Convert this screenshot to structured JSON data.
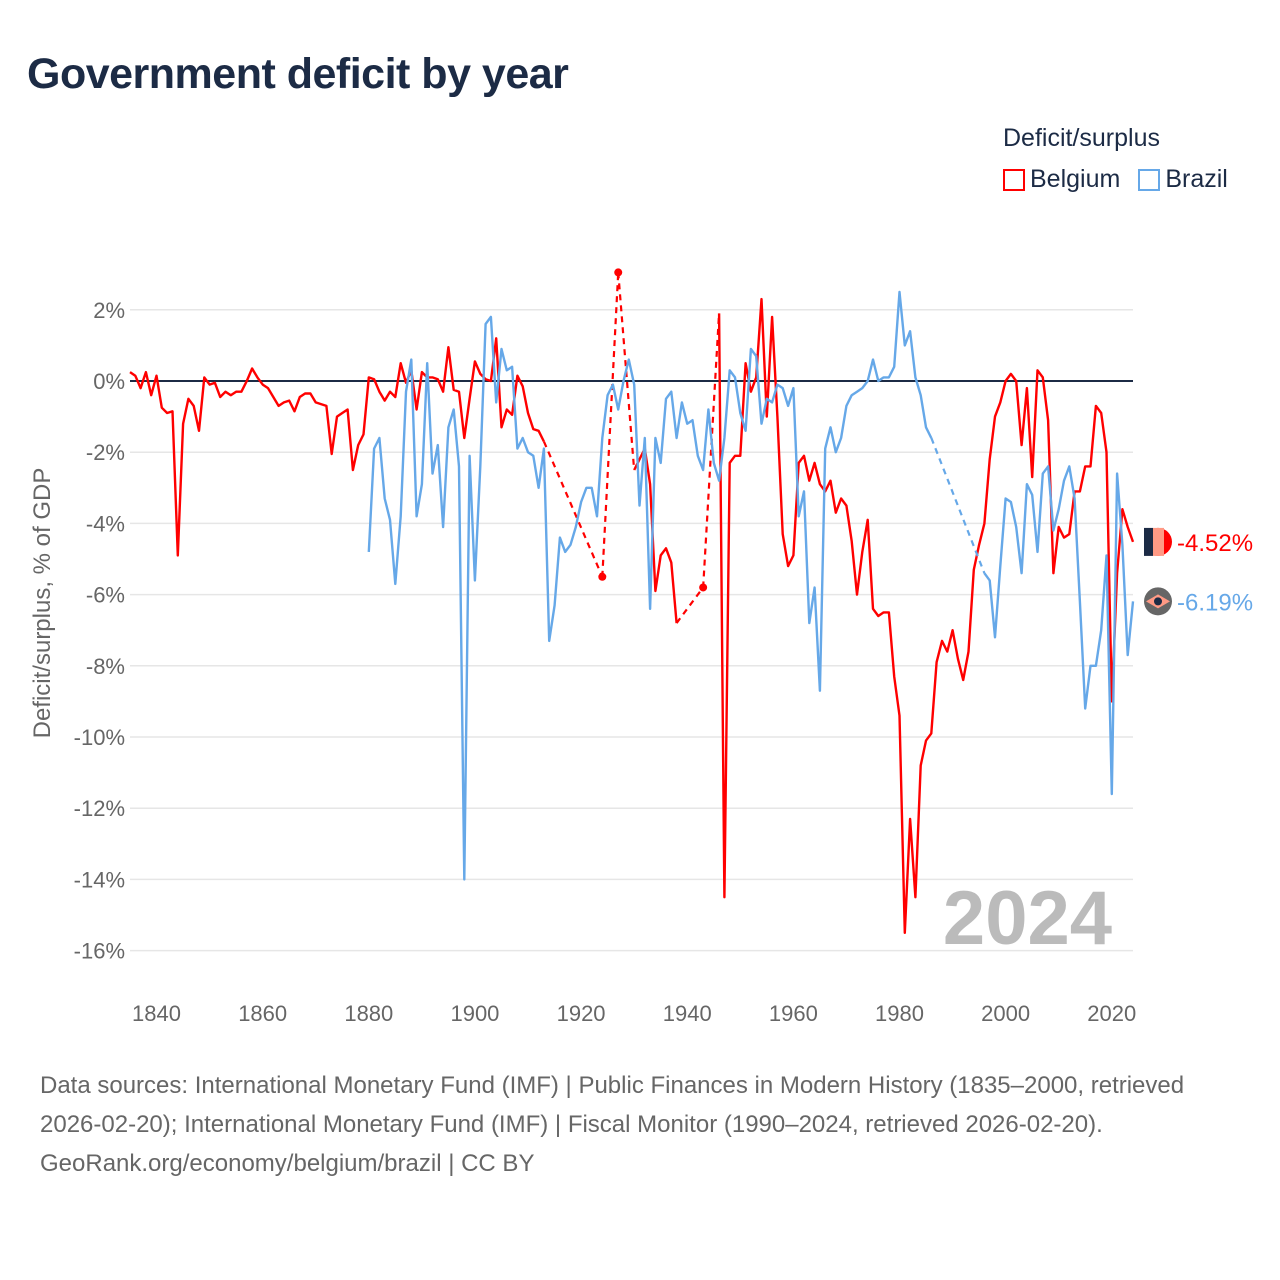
{
  "title": "Government deficit by year",
  "legend": {
    "title": "Deficit/surplus",
    "items": [
      {
        "name": "Belgium",
        "color": "#ff0000"
      },
      {
        "name": "Brazil",
        "color": "#66a8e8"
      }
    ]
  },
  "footer": {
    "sources": "Data sources: International Monetary Fund (IMF) | Public Finances in Modern History (1835–2000, retrieved 2026-02-20); International Monetary Fund (IMF) | Fiscal Monitor (1990–2024, retrieved 2026-02-20).",
    "credit": "GeoRank.org/economy/belgium/brazil | CC BY"
  },
  "chart_data": {
    "type": "line",
    "title": "Government deficit by year",
    "xlabel": "",
    "ylabel": "Deficit/surplus, % of GDP",
    "xlim": [
      1835,
      2024
    ],
    "ylim": [
      -17,
      3.3
    ],
    "x_ticks": [
      1840,
      1860,
      1880,
      1900,
      1920,
      1940,
      1960,
      1980,
      2000,
      2020
    ],
    "y_ticks": [
      2,
      0,
      -2,
      -4,
      -6,
      -8,
      -10,
      -12,
      -14,
      -16
    ],
    "y_tick_labels": [
      "2%",
      "0%",
      "-2%",
      "-4%",
      "-6%",
      "-8%",
      "-10%",
      "-12%",
      "-14%",
      "-16%"
    ],
    "current_year_label": "2024",
    "grid": true,
    "legend_position": "top-right",
    "series": [
      {
        "name": "Belgium",
        "color": "#ff0000",
        "end_label": "-4.52%",
        "years": [
          1835,
          1836,
          1837,
          1838,
          1839,
          1840,
          1841,
          1842,
          1843,
          1844,
          1845,
          1846,
          1847,
          1848,
          1849,
          1850,
          1851,
          1852,
          1853,
          1854,
          1855,
          1856,
          1857,
          1858,
          1859,
          1860,
          1861,
          1862,
          1863,
          1864,
          1865,
          1866,
          1867,
          1868,
          1869,
          1870,
          1871,
          1872,
          1873,
          1874,
          1875,
          1876,
          1877,
          1878,
          1879,
          1880,
          1881,
          1882,
          1883,
          1884,
          1885,
          1886,
          1887,
          1888,
          1889,
          1890,
          1891,
          1892,
          1893,
          1894,
          1895,
          1896,
          1897,
          1898,
          1899,
          1900,
          1901,
          1902,
          1903,
          1904,
          1905,
          1906,
          1907,
          1908,
          1909,
          1910,
          1911,
          1912,
          1913,
          1924,
          1927,
          1930,
          1931,
          1932,
          1933,
          1934,
          1935,
          1936,
          1937,
          1938,
          1943,
          1946,
          1947,
          1948,
          1949,
          1950,
          1951,
          1952,
          1953,
          1954,
          1955,
          1956,
          1957,
          1958,
          1959,
          1960,
          1961,
          1962,
          1963,
          1964,
          1965,
          1966,
          1967,
          1968,
          1969,
          1970,
          1971,
          1972,
          1973,
          1974,
          1975,
          1976,
          1977,
          1978,
          1979,
          1980,
          1981,
          1982,
          1983,
          1984,
          1985,
          1986,
          1987,
          1988,
          1989,
          1990,
          1991,
          1992,
          1993,
          1994,
          1995,
          1996,
          1997,
          1998,
          1999,
          2000,
          2001,
          2002,
          2003,
          2004,
          2005,
          2006,
          2007,
          2008,
          2009,
          2010,
          2011,
          2012,
          2013,
          2014,
          2015,
          2016,
          2017,
          2018,
          2019,
          2020,
          2021,
          2022,
          2023,
          2024
        ],
        "values": [
          0.25,
          0.15,
          -0.2,
          0.25,
          -0.4,
          0.15,
          -0.75,
          -0.9,
          -0.85,
          -4.9,
          -1.2,
          -0.5,
          -0.7,
          -1.4,
          0.1,
          -0.1,
          -0.05,
          -0.45,
          -0.3,
          -0.4,
          -0.3,
          -0.3,
          0.0,
          0.35,
          0.1,
          -0.1,
          -0.2,
          -0.45,
          -0.7,
          -0.6,
          -0.55,
          -0.85,
          -0.45,
          -0.35,
          -0.35,
          -0.6,
          -0.65,
          -0.7,
          -2.05,
          -1.0,
          -0.9,
          -0.8,
          -2.5,
          -1.8,
          -1.5,
          0.1,
          0.05,
          -0.3,
          -0.55,
          -0.3,
          -0.45,
          0.5,
          -0.05,
          0.3,
          -0.8,
          0.25,
          0.1,
          0.1,
          0.05,
          -0.3,
          0.95,
          -0.25,
          -0.3,
          -1.6,
          -0.5,
          0.55,
          0.2,
          0.05,
          0.0,
          1.2,
          -1.3,
          -0.8,
          -0.95,
          0.15,
          -0.15,
          -0.9,
          -1.35,
          -1.4,
          -1.7,
          -5.5,
          3.05,
          -2.5,
          -2.2,
          -1.9,
          -2.9,
          -5.9,
          -4.9,
          -4.7,
          -5.1,
          -6.8,
          -5.8,
          1.9,
          -14.5,
          -2.3,
          -2.1,
          -2.1,
          0.5,
          -0.3,
          0.1,
          2.3,
          -1.0,
          1.8,
          -1.0,
          -4.3,
          -5.2,
          -4.9,
          -2.3,
          -2.1,
          -2.8,
          -2.3,
          -2.9,
          -3.1,
          -2.8,
          -3.7,
          -3.3,
          -3.5,
          -4.5,
          -6.0,
          -4.8,
          -3.9,
          -6.4,
          -6.6,
          -6.5,
          -6.5,
          -8.3,
          -9.4,
          -15.5,
          -12.3,
          -14.5,
          -10.8,
          -10.1,
          -9.9,
          -7.9,
          -7.3,
          -7.6,
          -7.0,
          -7.8,
          -8.4,
          -7.6,
          -5.3,
          -4.6,
          -4.0,
          -2.2,
          -1.0,
          -0.6,
          0.0,
          0.2,
          0.0,
          -1.8,
          -0.2,
          -2.7,
          0.3,
          0.1,
          -1.1,
          -5.4,
          -4.1,
          -4.4,
          -4.3,
          -3.1,
          -3.1,
          -2.4,
          -2.4,
          -0.7,
          -0.9,
          -2.0,
          -9.0,
          -5.4,
          -3.6,
          -4.1,
          -4.52
        ]
      },
      {
        "name": "Brazil",
        "color": "#66a8e8",
        "end_label": "-6.19%",
        "years": [
          1880,
          1881,
          1882,
          1883,
          1884,
          1885,
          1886,
          1887,
          1888,
          1889,
          1890,
          1891,
          1892,
          1893,
          1894,
          1895,
          1896,
          1897,
          1898,
          1899,
          1900,
          1901,
          1902,
          1903,
          1904,
          1905,
          1906,
          1907,
          1908,
          1909,
          1910,
          1911,
          1912,
          1913,
          1914,
          1915,
          1916,
          1917,
          1918,
          1919,
          1920,
          1921,
          1922,
          1923,
          1924,
          1925,
          1926,
          1927,
          1928,
          1929,
          1930,
          1931,
          1932,
          1933,
          1934,
          1935,
          1936,
          1937,
          1938,
          1939,
          1940,
          1941,
          1942,
          1943,
          1944,
          1945,
          1946,
          1947,
          1948,
          1949,
          1950,
          1951,
          1952,
          1953,
          1954,
          1955,
          1956,
          1957,
          1958,
          1959,
          1960,
          1961,
          1962,
          1963,
          1964,
          1965,
          1966,
          1967,
          1968,
          1969,
          1970,
          1971,
          1972,
          1973,
          1974,
          1975,
          1976,
          1977,
          1978,
          1979,
          1980,
          1981,
          1982,
          1983,
          1984,
          1985,
          1986,
          1996,
          1997,
          1998,
          1999,
          2000,
          2001,
          2002,
          2003,
          2004,
          2005,
          2006,
          2007,
          2008,
          2009,
          2010,
          2011,
          2012,
          2013,
          2014,
          2015,
          2016,
          2017,
          2018,
          2019,
          2020,
          2021,
          2022,
          2023,
          2024
        ],
        "values": [
          -4.8,
          -1.9,
          -1.6,
          -3.3,
          -3.9,
          -5.7,
          -3.8,
          -0.3,
          0.6,
          -3.8,
          -2.9,
          0.5,
          -2.6,
          -1.8,
          -4.1,
          -1.3,
          -0.8,
          -2.4,
          -14.0,
          -2.1,
          -5.6,
          -2.4,
          1.6,
          1.8,
          -0.6,
          0.9,
          0.3,
          0.4,
          -1.9,
          -1.6,
          -2.0,
          -2.1,
          -3.0,
          -1.9,
          -7.3,
          -6.3,
          -4.4,
          -4.8,
          -4.6,
          -4.1,
          -3.4,
          -3.0,
          -3.0,
          -3.8,
          -1.6,
          -0.4,
          -0.1,
          -0.8,
          0.0,
          0.6,
          -0.1,
          -3.5,
          -1.6,
          -6.4,
          -1.6,
          -2.3,
          -0.5,
          -0.3,
          -1.6,
          -0.6,
          -1.2,
          -1.1,
          -2.1,
          -2.5,
          -0.8,
          -2.3,
          -2.8,
          -1.6,
          0.3,
          0.1,
          -0.9,
          -1.4,
          0.9,
          0.7,
          -1.2,
          -0.5,
          -0.6,
          -0.1,
          -0.2,
          -0.7,
          -0.2,
          -3.8,
          -3.1,
          -6.8,
          -5.8,
          -8.7,
          -1.9,
          -1.3,
          -2.0,
          -1.6,
          -0.7,
          -0.4,
          -0.3,
          -0.2,
          0.0,
          0.6,
          0.0,
          0.1,
          0.1,
          0.4,
          2.5,
          1.0,
          1.4,
          0.1,
          -0.4,
          -1.3,
          -1.6,
          -5.4,
          -5.6,
          -7.2,
          -5.2,
          -3.3,
          -3.4,
          -4.1,
          -5.4,
          -2.9,
          -3.2,
          -4.8,
          -2.6,
          -2.4,
          -4.2,
          -3.6,
          -2.8,
          -2.4,
          -3.3,
          -6.2,
          -9.2,
          -8.0,
          -8.0,
          -7.0,
          -4.9,
          -11.6,
          -2.6,
          -4.6,
          -7.7,
          -6.19
        ]
      }
    ]
  }
}
